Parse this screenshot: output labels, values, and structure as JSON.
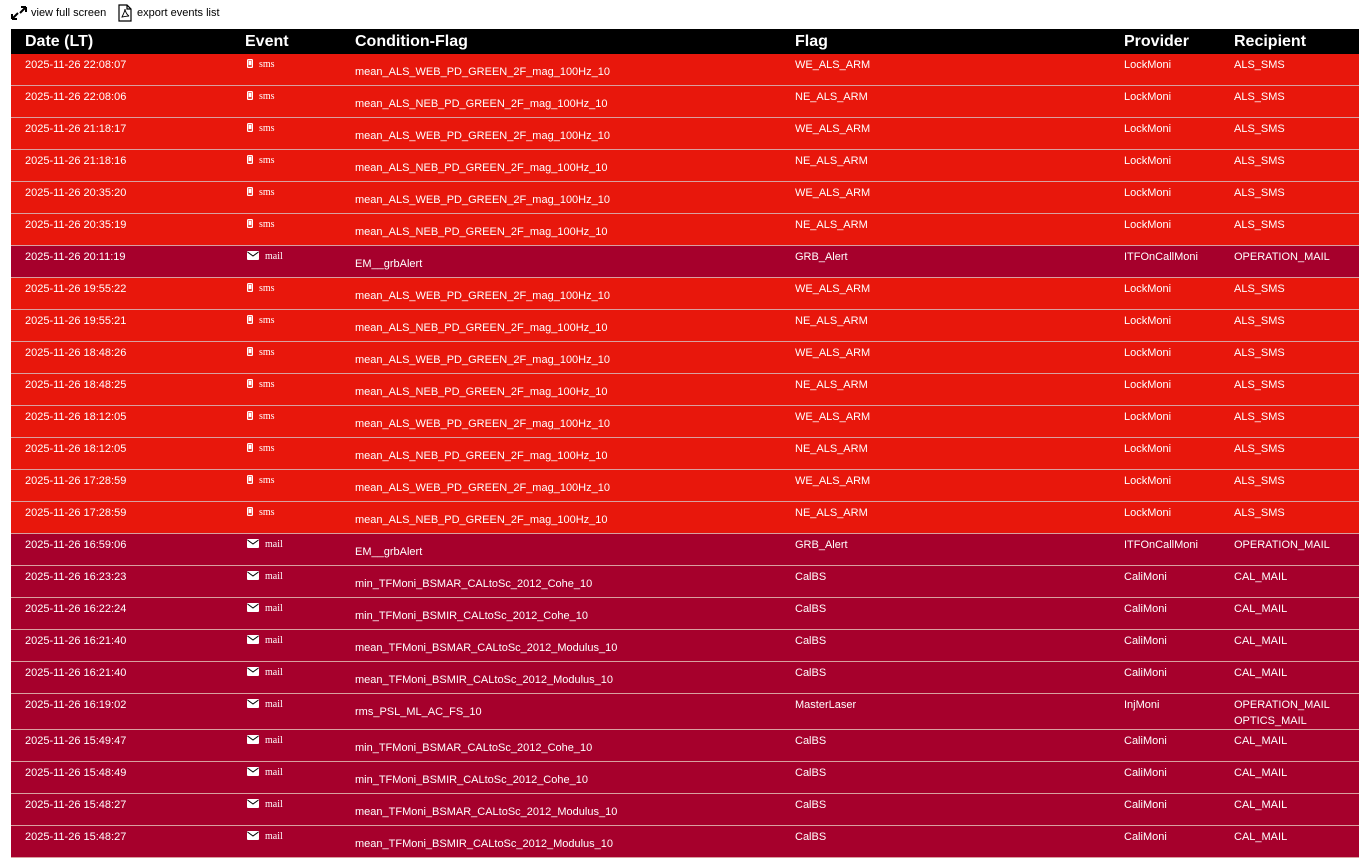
{
  "toolbar": {
    "full_screen": "view full screen",
    "export": "export events list"
  },
  "headers": [
    "Date (LT)",
    "Event",
    "Condition-Flag",
    "Flag",
    "Provider",
    "Recipient"
  ],
  "row_styles": {
    "sms": {
      "color": "#e8170c",
      "icon": "phone"
    },
    "mail": {
      "color": "#a6002c",
      "icon": "envelope"
    }
  },
  "rows": [
    {
      "date": "2025-11-26 22:08:07",
      "event": "sms",
      "condition": "mean_ALS_WEB_PD_GREEN_2F_mag_100Hz_10",
      "flag": "WE_ALS_ARM",
      "provider": "LockMoni",
      "recipients": [
        "ALS_SMS"
      ]
    },
    {
      "date": "2025-11-26 22:08:06",
      "event": "sms",
      "condition": "mean_ALS_NEB_PD_GREEN_2F_mag_100Hz_10",
      "flag": "NE_ALS_ARM",
      "provider": "LockMoni",
      "recipients": [
        "ALS_SMS"
      ]
    },
    {
      "date": "2025-11-26 21:18:17",
      "event": "sms",
      "condition": "mean_ALS_WEB_PD_GREEN_2F_mag_100Hz_10",
      "flag": "WE_ALS_ARM",
      "provider": "LockMoni",
      "recipients": [
        "ALS_SMS"
      ]
    },
    {
      "date": "2025-11-26 21:18:16",
      "event": "sms",
      "condition": "mean_ALS_NEB_PD_GREEN_2F_mag_100Hz_10",
      "flag": "NE_ALS_ARM",
      "provider": "LockMoni",
      "recipients": [
        "ALS_SMS"
      ]
    },
    {
      "date": "2025-11-26 20:35:20",
      "event": "sms",
      "condition": "mean_ALS_WEB_PD_GREEN_2F_mag_100Hz_10",
      "flag": "WE_ALS_ARM",
      "provider": "LockMoni",
      "recipients": [
        "ALS_SMS"
      ]
    },
    {
      "date": "2025-11-26 20:35:19",
      "event": "sms",
      "condition": "mean_ALS_NEB_PD_GREEN_2F_mag_100Hz_10",
      "flag": "NE_ALS_ARM",
      "provider": "LockMoni",
      "recipients": [
        "ALS_SMS"
      ]
    },
    {
      "date": "2025-11-26 20:11:19",
      "event": "mail",
      "condition": "EM__grbAlert",
      "flag": "GRB_Alert",
      "provider": "ITFOnCallMoni",
      "recipients": [
        "OPERATION_MAIL"
      ]
    },
    {
      "date": "2025-11-26 19:55:22",
      "event": "sms",
      "condition": "mean_ALS_WEB_PD_GREEN_2F_mag_100Hz_10",
      "flag": "WE_ALS_ARM",
      "provider": "LockMoni",
      "recipients": [
        "ALS_SMS"
      ]
    },
    {
      "date": "2025-11-26 19:55:21",
      "event": "sms",
      "condition": "mean_ALS_NEB_PD_GREEN_2F_mag_100Hz_10",
      "flag": "NE_ALS_ARM",
      "provider": "LockMoni",
      "recipients": [
        "ALS_SMS"
      ]
    },
    {
      "date": "2025-11-26 18:48:26",
      "event": "sms",
      "condition": "mean_ALS_WEB_PD_GREEN_2F_mag_100Hz_10",
      "flag": "WE_ALS_ARM",
      "provider": "LockMoni",
      "recipients": [
        "ALS_SMS"
      ]
    },
    {
      "date": "2025-11-26 18:48:25",
      "event": "sms",
      "condition": "mean_ALS_NEB_PD_GREEN_2F_mag_100Hz_10",
      "flag": "NE_ALS_ARM",
      "provider": "LockMoni",
      "recipients": [
        "ALS_SMS"
      ]
    },
    {
      "date": "2025-11-26 18:12:05",
      "event": "sms",
      "condition": "mean_ALS_WEB_PD_GREEN_2F_mag_100Hz_10",
      "flag": "WE_ALS_ARM",
      "provider": "LockMoni",
      "recipients": [
        "ALS_SMS"
      ]
    },
    {
      "date": "2025-11-26 18:12:05",
      "event": "sms",
      "condition": "mean_ALS_NEB_PD_GREEN_2F_mag_100Hz_10",
      "flag": "NE_ALS_ARM",
      "provider": "LockMoni",
      "recipients": [
        "ALS_SMS"
      ]
    },
    {
      "date": "2025-11-26 17:28:59",
      "event": "sms",
      "condition": "mean_ALS_WEB_PD_GREEN_2F_mag_100Hz_10",
      "flag": "WE_ALS_ARM",
      "provider": "LockMoni",
      "recipients": [
        "ALS_SMS"
      ]
    },
    {
      "date": "2025-11-26 17:28:59",
      "event": "sms",
      "condition": "mean_ALS_NEB_PD_GREEN_2F_mag_100Hz_10",
      "flag": "NE_ALS_ARM",
      "provider": "LockMoni",
      "recipients": [
        "ALS_SMS"
      ]
    },
    {
      "date": "2025-11-26 16:59:06",
      "event": "mail",
      "condition": "EM__grbAlert",
      "flag": "GRB_Alert",
      "provider": "ITFOnCallMoni",
      "recipients": [
        "OPERATION_MAIL"
      ]
    },
    {
      "date": "2025-11-26 16:23:23",
      "event": "mail",
      "condition": "min_TFMoni_BSMAR_CALtoSc_2012_Cohe_10",
      "flag": "CalBS",
      "provider": "CaliMoni",
      "recipients": [
        "CAL_MAIL"
      ]
    },
    {
      "date": "2025-11-26 16:22:24",
      "event": "mail",
      "condition": "min_TFMoni_BSMIR_CALtoSc_2012_Cohe_10",
      "flag": "CalBS",
      "provider": "CaliMoni",
      "recipients": [
        "CAL_MAIL"
      ]
    },
    {
      "date": "2025-11-26 16:21:40",
      "event": "mail",
      "condition": "mean_TFMoni_BSMAR_CALtoSc_2012_Modulus_10",
      "flag": "CalBS",
      "provider": "CaliMoni",
      "recipients": [
        "CAL_MAIL"
      ]
    },
    {
      "date": "2025-11-26 16:21:40",
      "event": "mail",
      "condition": "mean_TFMoni_BSMIR_CALtoSc_2012_Modulus_10",
      "flag": "CalBS",
      "provider": "CaliMoni",
      "recipients": [
        "CAL_MAIL"
      ]
    },
    {
      "date": "2025-11-26 16:19:02",
      "event": "mail",
      "condition": "rms_PSL_ML_AC_FS_10",
      "flag": "MasterLaser",
      "provider": "InjMoni",
      "recipients": [
        "OPERATION_MAIL",
        "OPTICS_MAIL"
      ]
    },
    {
      "date": "2025-11-26 15:49:47",
      "event": "mail",
      "condition": "min_TFMoni_BSMAR_CALtoSc_2012_Cohe_10",
      "flag": "CalBS",
      "provider": "CaliMoni",
      "recipients": [
        "CAL_MAIL"
      ]
    },
    {
      "date": "2025-11-26 15:48:49",
      "event": "mail",
      "condition": "min_TFMoni_BSMIR_CALtoSc_2012_Cohe_10",
      "flag": "CalBS",
      "provider": "CaliMoni",
      "recipients": [
        "CAL_MAIL"
      ]
    },
    {
      "date": "2025-11-26 15:48:27",
      "event": "mail",
      "condition": "mean_TFMoni_BSMAR_CALtoSc_2012_Modulus_10",
      "flag": "CalBS",
      "provider": "CaliMoni",
      "recipients": [
        "CAL_MAIL"
      ]
    },
    {
      "date": "2025-11-26 15:48:27",
      "event": "mail",
      "condition": "mean_TFMoni_BSMIR_CALtoSc_2012_Modulus_10",
      "flag": "CalBS",
      "provider": "CaliMoni",
      "recipients": [
        "CAL_MAIL"
      ]
    }
  ]
}
